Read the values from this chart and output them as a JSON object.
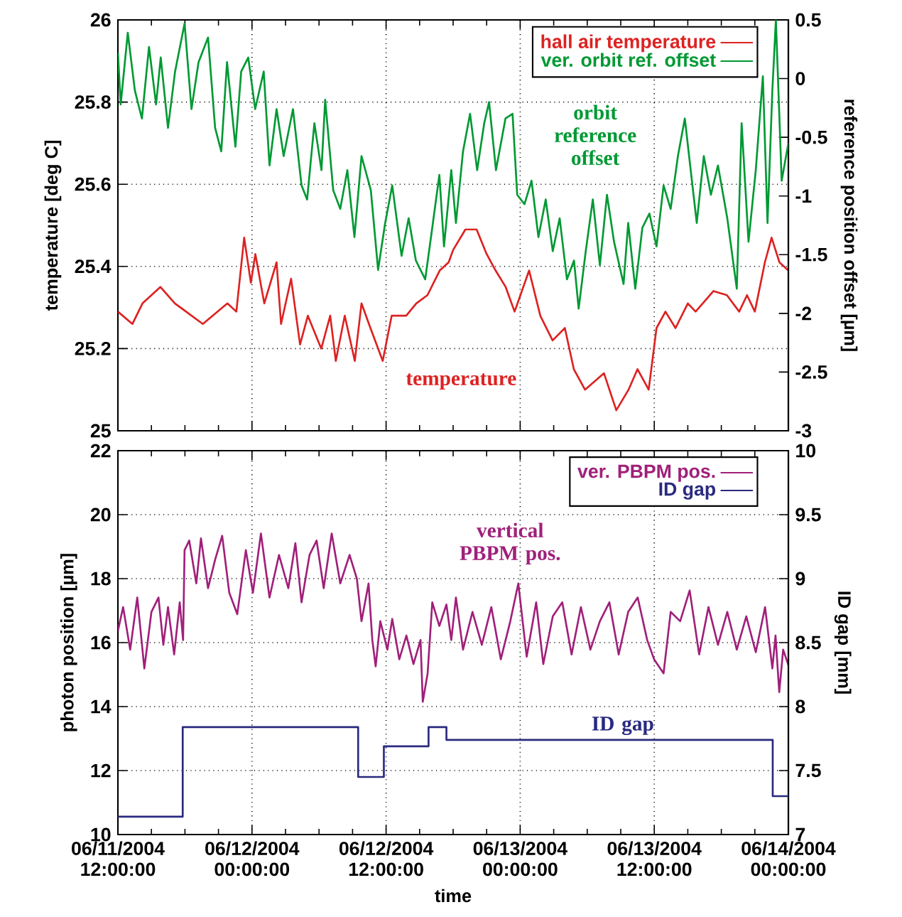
{
  "chart_data": [
    {
      "type": "line",
      "xlim": [
        "2004-06-11T12:00",
        "2004-06-14T00:00"
      ],
      "xticks": [
        {
          "value": "2004-06-11T12:00",
          "label": null
        },
        {
          "value": "2004-06-12T00:00",
          "label": null
        },
        {
          "value": "2004-06-12T12:00",
          "label": null
        },
        {
          "value": "2004-06-13T00:00",
          "label": null
        },
        {
          "value": "2004-06-13T12:00",
          "label": null
        },
        {
          "value": "2004-06-14T00:00",
          "label": null
        }
      ],
      "tick_labels": "y",
      "ylim": [
        25,
        26
      ],
      "yticks": [
        25,
        25.2,
        25.4,
        25.6,
        25.8,
        26
      ],
      "y2lim": [
        -3,
        0.5
      ],
      "y2ticks": [
        -3,
        -2.5,
        -2,
        -1.5,
        -1,
        -0.5,
        0,
        0.5
      ],
      "ylabel": "temperature [deg C]",
      "y2label": "reference position offset [µm]",
      "grid": true,
      "legend": "top right",
      "annotations": [
        "temperature",
        "orbit reference offset"
      ],
      "series": [
        {
          "name": "hall air temperature",
          "color": "#dd2222",
          "x": [
            "2004-06-11T12:00",
            "2004-06-11T13:18",
            "2004-06-11T14:12",
            "2004-06-11T15:48",
            "2004-06-11T17:06",
            "2004-06-11T19:36",
            "2004-06-11T21:48",
            "2004-06-11T22:36",
            "2004-06-11T23:18",
            "2004-06-11T23:54",
            "2004-06-12T00:18",
            "2004-06-12T01:06",
            "2004-06-12T02:12",
            "2004-06-12T02:36",
            "2004-06-12T03:30",
            "2004-06-12T04:18",
            "2004-06-12T05:00",
            "2004-06-12T06:12",
            "2004-06-12T07:00",
            "2004-06-12T07:30",
            "2004-06-12T08:18",
            "2004-06-12T09:12",
            "2004-06-12T09:48",
            "2004-06-12T10:36",
            "2004-06-12T11:42",
            "2004-06-12T12:30",
            "2004-06-12T13:48",
            "2004-06-12T14:42",
            "2004-06-12T15:42",
            "2004-06-12T16:48",
            "2004-06-12T17:36",
            "2004-06-12T18:00",
            "2004-06-12T19:06",
            "2004-06-12T20:06",
            "2004-06-12T21:00",
            "2004-06-12T21:48",
            "2004-06-12T22:42",
            "2004-06-12T23:30",
            "2004-06-13T00:48",
            "2004-06-13T01:48",
            "2004-06-13T02:54",
            "2004-06-13T04:00",
            "2004-06-13T04:48",
            "2004-06-13T05:48",
            "2004-06-13T07:30",
            "2004-06-13T08:36",
            "2004-06-13T09:42",
            "2004-06-13T10:30",
            "2004-06-13T11:30",
            "2004-06-13T12:12",
            "2004-06-13T13:00",
            "2004-06-13T13:54",
            "2004-06-13T15:00",
            "2004-06-13T15:42",
            "2004-06-13T17:18",
            "2004-06-13T18:30",
            "2004-06-13T19:36",
            "2004-06-13T20:18",
            "2004-06-13T21:00",
            "2004-06-13T21:54",
            "2004-06-13T22:30",
            "2004-06-13T23:12",
            "2004-06-14T00:00"
          ],
          "values": [
            25.29,
            25.26,
            25.31,
            25.35,
            25.31,
            25.26,
            25.31,
            25.29,
            25.47,
            25.36,
            25.43,
            25.31,
            25.41,
            25.26,
            25.37,
            25.21,
            25.28,
            25.2,
            25.28,
            25.17,
            25.28,
            25.17,
            25.31,
            25.25,
            25.17,
            25.28,
            25.28,
            25.31,
            25.33,
            25.39,
            25.41,
            25.44,
            25.49,
            25.49,
            25.43,
            25.39,
            25.35,
            25.29,
            25.39,
            25.28,
            25.22,
            25.25,
            25.15,
            25.1,
            25.14,
            25.05,
            25.1,
            25.15,
            25.1,
            25.25,
            25.29,
            25.25,
            25.31,
            25.29,
            25.34,
            25.33,
            25.29,
            25.33,
            25.29,
            25.41,
            25.47,
            25.41,
            25.39
          ]
        },
        {
          "name": "ver. orbit ref. offset",
          "color": "#009933",
          "axis": "y2",
          "x": [
            "2004-06-11T12:00",
            "2004-06-11T12:15",
            "2004-06-11T12:53",
            "2004-06-11T13:31",
            "2004-06-11T14:09",
            "2004-06-11T14:47",
            "2004-06-11T15:25",
            "2004-06-11T15:50",
            "2004-06-11T16:29",
            "2004-06-11T17:07",
            "2004-06-11T17:58",
            "2004-06-11T18:35",
            "2004-06-11T19:13",
            "2004-06-11T20:04",
            "2004-06-11T20:42",
            "2004-06-11T21:15",
            "2004-06-11T21:46",
            "2004-06-11T22:31",
            "2004-06-11T23:02",
            "2004-06-11T23:40",
            "2004-06-12T00:17",
            "2004-06-12T01:03",
            "2004-06-12T01:34",
            "2004-06-12T02:12",
            "2004-06-12T02:50",
            "2004-06-12T03:40",
            "2004-06-12T04:26",
            "2004-06-12T04:56",
            "2004-06-12T05:35",
            "2004-06-12T06:13",
            "2004-06-12T06:33",
            "2004-06-12T07:16",
            "2004-06-12T07:54",
            "2004-06-12T08:32",
            "2004-06-12T09:10",
            "2004-06-12T09:48",
            "2004-06-12T10:38",
            "2004-06-12T11:17",
            "2004-06-12T11:55",
            "2004-06-12T12:33",
            "2004-06-12T13:23",
            "2004-06-12T14:01",
            "2004-06-12T14:40",
            "2004-06-12T15:30",
            "2004-06-12T16:08",
            "2004-06-12T16:46",
            "2004-06-12T17:11",
            "2004-06-12T17:50",
            "2004-06-12T18:15",
            "2004-06-12T18:53",
            "2004-06-12T19:31",
            "2004-06-12T20:09",
            "2004-06-12T20:47",
            "2004-06-12T21:13",
            "2004-06-12T21:50",
            "2004-06-12T22:41",
            "2004-06-12T23:19",
            "2004-06-12T23:44",
            "2004-06-13T00:23",
            "2004-06-13T01:01",
            "2004-06-13T01:38",
            "2004-06-13T02:17",
            "2004-06-13T02:55",
            "2004-06-13T03:32",
            "2004-06-13T04:11",
            "2004-06-13T04:49",
            "2004-06-13T05:14",
            "2004-06-13T05:52",
            "2004-06-13T06:30",
            "2004-06-13T07:08",
            "2004-06-13T07:46",
            "2004-06-13T08:24",
            "2004-06-13T09:15",
            "2004-06-13T09:40",
            "2004-06-13T10:18",
            "2004-06-13T10:56",
            "2004-06-13T11:34",
            "2004-06-13T12:12",
            "2004-06-13T12:50",
            "2004-06-13T13:28",
            "2004-06-13T14:07",
            "2004-06-13T14:44",
            "2004-06-13T15:22",
            "2004-06-13T15:48",
            "2004-06-13T16:26",
            "2004-06-13T17:04",
            "2004-06-13T17:42",
            "2004-06-13T18:32",
            "2004-06-13T19:23",
            "2004-06-13T19:49",
            "2004-06-13T20:26",
            "2004-06-13T21:05",
            "2004-06-13T21:43",
            "2004-06-13T22:08",
            "2004-06-13T22:34",
            "2004-06-13T22:53",
            "2004-06-13T23:24",
            "2004-06-14T00:00"
          ],
          "values": [
            0.22,
            -0.22,
            0.39,
            -0.1,
            -0.34,
            0.27,
            -0.22,
            0.18,
            -0.42,
            0.06,
            0.47,
            -0.26,
            0.14,
            0.35,
            -0.42,
            -0.62,
            0.14,
            -0.58,
            0.06,
            0.18,
            -0.26,
            0.06,
            -0.74,
            -0.26,
            -0.66,
            -0.26,
            -0.91,
            -1.03,
            -0.38,
            -0.78,
            -0.18,
            -0.95,
            -1.11,
            -0.78,
            -1.35,
            -0.66,
            -0.95,
            -1.63,
            -1.23,
            -0.91,
            -1.51,
            -1.19,
            -1.55,
            -1.71,
            -1.27,
            -0.82,
            -1.43,
            -0.78,
            -1.23,
            -0.62,
            -0.3,
            -0.78,
            -0.38,
            -0.2,
            -0.78,
            -0.34,
            -0.3,
            -0.99,
            -1.07,
            -0.87,
            -1.35,
            -1.03,
            -1.47,
            -1.19,
            -1.71,
            -1.55,
            -1.96,
            -1.47,
            -1.03,
            -1.59,
            -0.99,
            -1.39,
            -1.75,
            -1.23,
            -1.79,
            -1.27,
            -1.15,
            -1.43,
            -0.91,
            -1.11,
            -0.66,
            -0.34,
            -0.87,
            -1.23,
            -0.66,
            -0.99,
            -0.74,
            -1.19,
            -1.79,
            -0.38,
            -1.39,
            -0.78,
            0.02,
            -1.23,
            -0.1,
            0.5,
            -0.87,
            -0.55
          ]
        }
      ]
    },
    {
      "type": "line",
      "xlim": [
        "2004-06-11T12:00",
        "2004-06-14T00:00"
      ],
      "xticks": [
        {
          "value": "2004-06-11T12:00",
          "label": "06/11/2004 12:00:00"
        },
        {
          "value": "2004-06-12T00:00",
          "label": "06/12/2004 00:00:00"
        },
        {
          "value": "2004-06-12T12:00",
          "label": "06/12/2004 12:00:00"
        },
        {
          "value": "2004-06-13T00:00",
          "label": "06/13/2004 00:00:00"
        },
        {
          "value": "2004-06-13T12:00",
          "label": "06/13/2004 12:00:00"
        },
        {
          "value": "2004-06-14T00:00",
          "label": "06/14/2004 00:00:00"
        }
      ],
      "ylim": [
        10,
        22
      ],
      "yticks": [
        10,
        12,
        14,
        16,
        18,
        20,
        22
      ],
      "y2lim": [
        7,
        10
      ],
      "y2ticks": [
        7,
        7.5,
        8,
        8.5,
        9,
        9.5,
        10
      ],
      "xlabel": "time",
      "ylabel": "photon position [µm]",
      "y2label": "ID gap [mm]",
      "grid": true,
      "legend": "top right",
      "annotations": [
        "vertical PBPM pos.",
        "ID gap"
      ],
      "series": [
        {
          "name": "ver. PBPM pos.",
          "color": "#a0207a",
          "x": [
            "2004-06-11T12:00",
            "2004-06-11T12:28",
            "2004-06-11T13:06",
            "2004-06-11T13:44",
            "2004-06-11T14:22",
            "2004-06-11T15:00",
            "2004-06-11T15:38",
            "2004-06-11T16:04",
            "2004-06-11T16:29",
            "2004-06-11T17:02",
            "2004-06-11T17:32",
            "2004-06-11T17:50",
            "2004-06-11T17:58",
            "2004-06-11T18:23",
            "2004-06-11T19:01",
            "2004-06-11T19:26",
            "2004-06-11T20:04",
            "2004-06-11T20:42",
            "2004-06-11T21:20",
            "2004-06-11T21:58",
            "2004-06-11T22:41",
            "2004-06-11T23:27",
            "2004-06-12T00:05",
            "2004-06-12T00:48",
            "2004-06-12T01:34",
            "2004-06-12T02:25",
            "2004-06-12T03:15",
            "2004-06-12T03:53",
            "2004-06-12T04:26",
            "2004-06-12T05:09",
            "2004-06-12T05:47",
            "2004-06-12T06:25",
            "2004-06-12T07:08",
            "2004-06-12T07:54",
            "2004-06-12T08:44",
            "2004-06-12T09:23",
            "2004-06-12T09:48",
            "2004-06-12T10:26",
            "2004-06-12T10:46",
            "2004-06-12T11:04",
            "2004-06-12T11:29",
            "2004-06-12T12:07",
            "2004-06-12T12:33",
            "2004-06-12T13:11",
            "2004-06-12T13:49",
            "2004-06-12T14:27",
            "2004-06-12T15:05",
            "2004-06-12T15:17",
            "2004-06-12T15:43",
            "2004-06-12T16:08",
            "2004-06-12T16:46",
            "2004-06-12T17:24",
            "2004-06-12T17:50",
            "2004-06-12T18:15",
            "2004-06-12T18:53",
            "2004-06-12T19:44",
            "2004-06-12T20:34",
            "2004-06-12T21:25",
            "2004-06-12T22:16",
            "2004-06-12T23:07",
            "2004-06-12T23:50",
            "2004-06-13T00:35",
            "2004-06-13T01:26",
            "2004-06-13T02:04",
            "2004-06-13T02:55",
            "2004-06-13T03:46",
            "2004-06-13T04:36",
            "2004-06-13T05:26",
            "2004-06-13T06:17",
            "2004-06-13T07:08",
            "2004-06-13T07:59",
            "2004-06-13T08:49",
            "2004-06-13T09:40",
            "2004-06-13T10:31",
            "2004-06-13T11:22",
            "2004-06-13T11:59",
            "2004-06-13T12:50",
            "2004-06-13T13:28",
            "2004-06-13T14:19",
            "2004-06-13T15:10",
            "2004-06-13T16:01",
            "2004-06-13T16:51",
            "2004-06-13T17:42",
            "2004-06-13T18:32",
            "2004-06-13T19:23",
            "2004-06-13T20:14",
            "2004-06-13T21:05",
            "2004-06-13T21:55",
            "2004-06-13T22:34",
            "2004-06-13T22:51",
            "2004-06-13T23:11",
            "2004-06-13T23:32",
            "2004-06-14T00:00"
          ],
          "values": [
            16.37,
            17.11,
            15.78,
            17.41,
            15.19,
            16.96,
            17.41,
            15.93,
            17.11,
            15.63,
            17.26,
            16.08,
            18.89,
            19.19,
            17.85,
            19.26,
            17.7,
            18.59,
            19.34,
            17.56,
            16.89,
            18.89,
            17.56,
            19.41,
            17.41,
            18.74,
            17.7,
            19.11,
            17.26,
            18.74,
            19.19,
            17.7,
            19.41,
            17.85,
            18.74,
            18.0,
            16.67,
            17.85,
            16.08,
            15.26,
            16.67,
            15.78,
            16.74,
            15.48,
            16.22,
            15.33,
            16.08,
            14.15,
            15.04,
            17.26,
            16.52,
            17.19,
            16.08,
            17.41,
            15.78,
            16.96,
            15.93,
            17.11,
            15.48,
            16.67,
            17.85,
            15.56,
            17.26,
            15.33,
            16.82,
            17.26,
            15.63,
            17.11,
            15.78,
            16.67,
            17.26,
            15.63,
            16.96,
            17.41,
            16.08,
            15.48,
            15.04,
            16.96,
            16.67,
            17.63,
            15.63,
            17.11,
            15.93,
            16.96,
            15.78,
            16.82,
            15.7,
            17.11,
            15.19,
            16.22,
            14.45,
            15.78,
            15.3
          ]
        },
        {
          "name": "ID gap",
          "color": "#2a2a80",
          "type": "step",
          "axis": "y2",
          "x": [
            "2004-06-11T12:00",
            "2004-06-11T17:48",
            "2004-06-12T09:30",
            "2004-06-12T11:48",
            "2004-06-12T15:48",
            "2004-06-12T17:24",
            "2004-06-13T22:36",
            "2004-06-14T00:00"
          ],
          "values": [
            7.14,
            7.84,
            7.45,
            7.69,
            7.84,
            7.74,
            7.3,
            7.3
          ]
        }
      ]
    }
  ]
}
